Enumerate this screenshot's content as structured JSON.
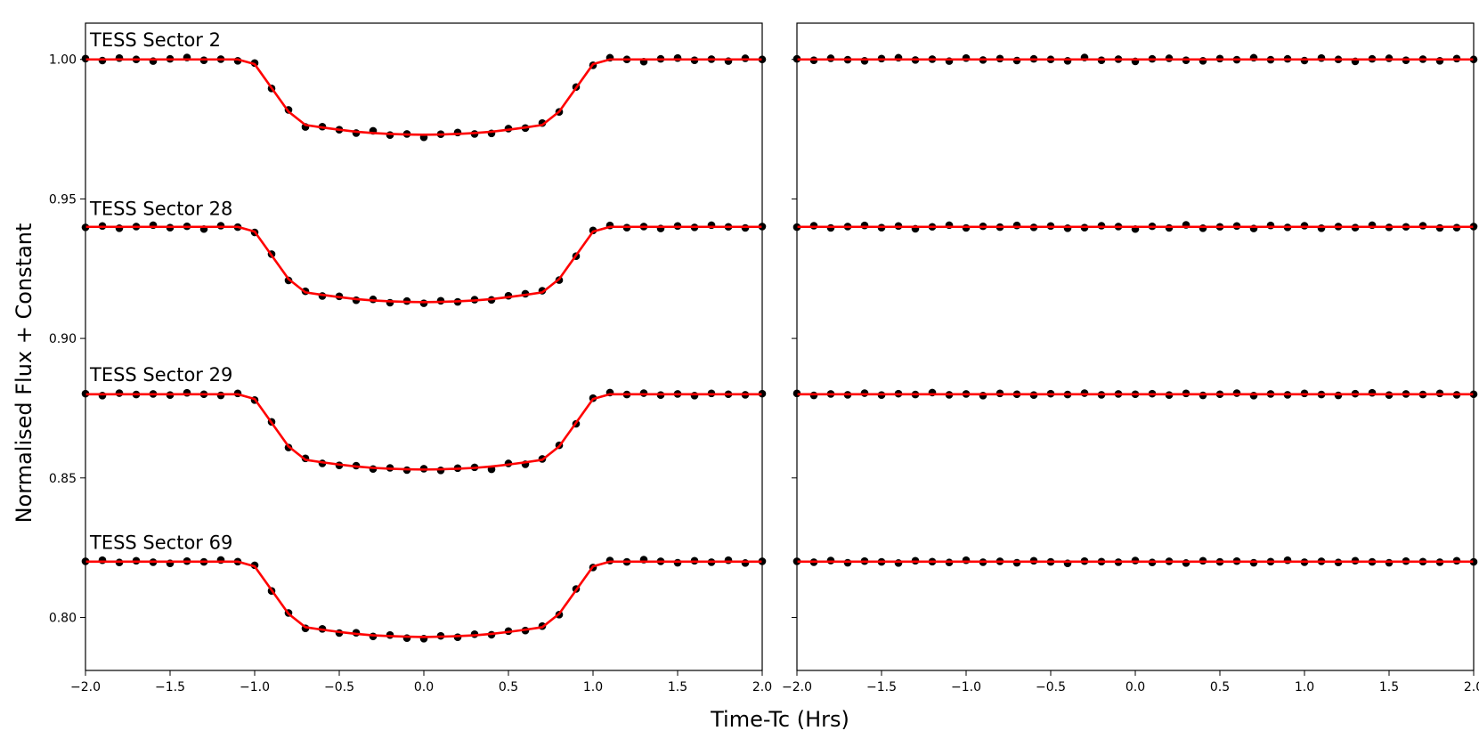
{
  "figure": {
    "xlabel": "Time-Tc (Hrs)",
    "ylabel": "Normalised Flux + Constant"
  },
  "chart_data": [
    {
      "type": "scatter",
      "xlim": [
        -2,
        2
      ],
      "ylim": [
        0.781,
        1.013
      ],
      "xticks": [
        {
          "value": -2,
          "label": "−2.0"
        },
        {
          "value": -1.5,
          "label": "−1.5"
        },
        {
          "value": -1,
          "label": "−1.0"
        },
        {
          "value": -0.5,
          "label": "−0.5"
        },
        {
          "value": 0,
          "label": "0.0"
        },
        0.5,
        {
          "value": 1,
          "label": "1.0"
        },
        1.5,
        {
          "value": 2,
          "label": "2.0"
        }
      ],
      "yticks": [
        {
          "value": 0.8,
          "label": "0.80"
        },
        0.85,
        {
          "value": 0.9,
          "label": "0.90"
        },
        0.95,
        {
          "value": 1,
          "label": "1.00"
        }
      ],
      "ytick_labels": true,
      "x": [
        -2.0,
        -1.9,
        -1.8,
        -1.7,
        -1.6,
        -1.5,
        -1.4,
        -1.3,
        -1.2,
        -1.1,
        -1.0,
        -0.9,
        -0.8,
        -0.7,
        -0.6,
        -0.5,
        -0.4,
        -0.3,
        -0.2,
        -0.1,
        0.0,
        0.1,
        0.2,
        0.3,
        0.4,
        0.5,
        0.6,
        0.7,
        0.8,
        0.9,
        1.0,
        1.1,
        1.2,
        1.3,
        1.4,
        1.5,
        1.6,
        1.7,
        1.8,
        1.9,
        2.0
      ],
      "series": [
        {
          "label": "TESS Sector 2",
          "mode": "markers",
          "color": "#000000",
          "values": [
            1.0003,
            0.9996,
            1.0005,
            1.0,
            0.9994,
            1.0002,
            1.0007,
            0.9997,
            1.0001,
            0.9995,
            0.9987,
            0.9896,
            0.9819,
            0.9758,
            0.9759,
            0.9748,
            0.9736,
            0.9744,
            0.9729,
            0.9733,
            0.9721,
            0.9732,
            0.9738,
            0.9733,
            0.9735,
            0.9752,
            0.9754,
            0.9772,
            0.9812,
            0.9901,
            0.9979,
            1.0006,
            1.0,
            0.9992,
            1.0002,
            1.0005,
            0.9997,
            1.0001,
            0.9994,
            1.0004,
            1.0
          ]
        },
        {
          "label": "TESS Sector 28",
          "mode": "markers",
          "color": "#000000",
          "values": [
            0.9398,
            0.9403,
            0.9395,
            0.9401,
            0.9406,
            0.9397,
            0.9402,
            0.9392,
            0.9404,
            0.9399,
            0.938,
            0.9302,
            0.9208,
            0.9169,
            0.9152,
            0.9151,
            0.9137,
            0.914,
            0.9128,
            0.9134,
            0.9126,
            0.9135,
            0.9131,
            0.9139,
            0.9138,
            0.9153,
            0.916,
            0.9171,
            0.9209,
            0.9295,
            0.9387,
            0.9405,
            0.9397,
            0.9401,
            0.9394,
            0.9403,
            0.9398,
            0.9406,
            0.94,
            0.9396,
            0.9401
          ]
        },
        {
          "label": "TESS Sector 29",
          "mode": "markers",
          "color": "#000000",
          "values": [
            0.8802,
            0.8795,
            0.8804,
            0.8799,
            0.8801,
            0.8797,
            0.8805,
            0.88,
            0.8796,
            0.8803,
            0.8779,
            0.8701,
            0.8609,
            0.857,
            0.8552,
            0.8545,
            0.8544,
            0.8532,
            0.8536,
            0.8528,
            0.8533,
            0.8527,
            0.8535,
            0.8538,
            0.8531,
            0.8552,
            0.8549,
            0.8568,
            0.8617,
            0.8694,
            0.8786,
            0.8806,
            0.8799,
            0.8804,
            0.8797,
            0.8801,
            0.8795,
            0.8803,
            0.88,
            0.8798,
            0.8802
          ]
        },
        {
          "label": "TESS Sector 69",
          "mode": "markers",
          "color": "#000000",
          "values": [
            0.8201,
            0.8205,
            0.8197,
            0.8203,
            0.8198,
            0.8194,
            0.8202,
            0.8199,
            0.8206,
            0.82,
            0.8187,
            0.8095,
            0.8016,
            0.7961,
            0.7959,
            0.7944,
            0.7945,
            0.7932,
            0.7937,
            0.7926,
            0.7924,
            0.7934,
            0.7929,
            0.794,
            0.7938,
            0.7951,
            0.7953,
            0.7969,
            0.801,
            0.8102,
            0.8179,
            0.8204,
            0.8199,
            0.8207,
            0.8201,
            0.8196,
            0.8203,
            0.8198,
            0.8205,
            0.8195,
            0.8201
          ]
        },
        {
          "mode": "line",
          "color": "#ff0000",
          "values": [
            1.0,
            1.0,
            1.0,
            1.0,
            1.0,
            1.0,
            1.0,
            1.0,
            1.0,
            1.0,
            0.9983,
            0.9898,
            0.9813,
            0.9765,
            0.9756,
            0.9748,
            0.9741,
            0.9736,
            0.9733,
            0.9731,
            0.973,
            0.9731,
            0.9733,
            0.9736,
            0.9741,
            0.9748,
            0.9756,
            0.9765,
            0.9813,
            0.9898,
            0.9983,
            1.0,
            1.0,
            1.0,
            1.0,
            1.0,
            1.0,
            1.0,
            1.0,
            1.0,
            1.0
          ]
        },
        {
          "mode": "line",
          "color": "#ff0000",
          "values": [
            0.94,
            0.94,
            0.94,
            0.94,
            0.94,
            0.94,
            0.94,
            0.94,
            0.94,
            0.94,
            0.9383,
            0.9298,
            0.9213,
            0.9165,
            0.9156,
            0.9148,
            0.9141,
            0.9136,
            0.9133,
            0.9131,
            0.913,
            0.9131,
            0.9133,
            0.9136,
            0.9141,
            0.9148,
            0.9156,
            0.9165,
            0.9213,
            0.9298,
            0.9383,
            0.94,
            0.94,
            0.94,
            0.94,
            0.94,
            0.94,
            0.94,
            0.94,
            0.94,
            0.94
          ]
        },
        {
          "mode": "line",
          "color": "#ff0000",
          "values": [
            0.88,
            0.88,
            0.88,
            0.88,
            0.88,
            0.88,
            0.88,
            0.88,
            0.88,
            0.88,
            0.8783,
            0.8698,
            0.8613,
            0.8565,
            0.8556,
            0.8548,
            0.8541,
            0.8536,
            0.8533,
            0.8531,
            0.853,
            0.8531,
            0.8533,
            0.8536,
            0.8541,
            0.8548,
            0.8556,
            0.8565,
            0.8613,
            0.8698,
            0.8783,
            0.88,
            0.88,
            0.88,
            0.88,
            0.88,
            0.88,
            0.88,
            0.88,
            0.88,
            0.88
          ]
        },
        {
          "mode": "line",
          "color": "#ff0000",
          "values": [
            0.82,
            0.82,
            0.82,
            0.82,
            0.82,
            0.82,
            0.82,
            0.82,
            0.82,
            0.82,
            0.8183,
            0.8098,
            0.8013,
            0.7965,
            0.7956,
            0.7948,
            0.7941,
            0.7936,
            0.7933,
            0.7931,
            0.793,
            0.7931,
            0.7933,
            0.7936,
            0.7941,
            0.7948,
            0.7956,
            0.7965,
            0.8013,
            0.8098,
            0.8183,
            0.82,
            0.82,
            0.82,
            0.82,
            0.82,
            0.82,
            0.82,
            0.82,
            0.82,
            0.82
          ]
        }
      ]
    },
    {
      "type": "scatter",
      "xlim": [
        -2,
        2
      ],
      "ylim": [
        0.781,
        1.013
      ],
      "xticks": [
        {
          "value": -2,
          "label": "−2.0"
        },
        {
          "value": -1.5,
          "label": "−1.5"
        },
        {
          "value": -1,
          "label": "−1.0"
        },
        {
          "value": -0.5,
          "label": "−0.5"
        },
        {
          "value": 0,
          "label": "0.0"
        },
        0.5,
        {
          "value": 1,
          "label": "1.0"
        },
        1.5,
        {
          "value": 2,
          "label": "2.0"
        }
      ],
      "yticks": [
        0.8,
        0.85,
        0.9,
        0.95,
        1
      ],
      "ytick_labels": false,
      "x": [
        -2.0,
        -1.9,
        -1.8,
        -1.7,
        -1.6,
        -1.5,
        -1.4,
        -1.3,
        -1.2,
        -1.1,
        -1.0,
        -0.9,
        -0.8,
        -0.7,
        -0.6,
        -0.5,
        -0.4,
        -0.3,
        -0.2,
        -0.1,
        0.0,
        0.1,
        0.2,
        0.3,
        0.4,
        0.5,
        0.6,
        0.7,
        0.8,
        0.9,
        1.0,
        1.1,
        1.2,
        1.3,
        1.4,
        1.5,
        1.6,
        1.7,
        1.8,
        1.9,
        2.0
      ],
      "series": [
        {
          "mode": "markers",
          "color": "#000000",
          "values": [
            1.0002,
            0.9997,
            1.0004,
            0.9999,
            0.9995,
            1.0003,
            1.0006,
            0.9998,
            1.0001,
            0.9994,
            1.0005,
            0.9998,
            1.0003,
            0.9996,
            1.0002,
            1.0,
            0.9995,
            1.0007,
            0.9997,
            1.0001,
            0.9993,
            1.0002,
            1.0004,
            0.9997,
            0.9995,
            1.0003,
            0.9999,
            1.0006,
            0.9999,
            1.0002,
            0.9996,
            1.0005,
            1.0,
            0.9993,
            1.0002,
            1.0004,
            0.9997,
            1.0001,
            0.9995,
            1.0003,
            1.0
          ]
        },
        {
          "mode": "markers",
          "color": "#000000",
          "values": [
            0.9399,
            0.9404,
            0.9396,
            0.9401,
            0.9405,
            0.9397,
            0.9403,
            0.9393,
            0.94,
            0.9406,
            0.9396,
            0.9402,
            0.9399,
            0.9405,
            0.9398,
            0.9403,
            0.9395,
            0.9397,
            0.9404,
            0.9401,
            0.9392,
            0.9402,
            0.9396,
            0.9407,
            0.9395,
            0.94,
            0.9403,
            0.9394,
            0.9405,
            0.9398,
            0.9404,
            0.9395,
            0.9401,
            0.9397,
            0.9406,
            0.9398,
            0.94,
            0.9404,
            0.9396,
            0.9397,
            0.9401
          ]
        },
        {
          "mode": "markers",
          "color": "#000000",
          "values": [
            0.8803,
            0.8796,
            0.8801,
            0.8798,
            0.8804,
            0.8797,
            0.8802,
            0.8799,
            0.8806,
            0.8798,
            0.8801,
            0.8795,
            0.8803,
            0.88,
            0.8797,
            0.8802,
            0.8799,
            0.8804,
            0.8798,
            0.8801,
            0.88,
            0.8802,
            0.8797,
            0.8803,
            0.8796,
            0.88,
            0.8804,
            0.8795,
            0.8801,
            0.8798,
            0.8803,
            0.8799,
            0.8796,
            0.8802,
            0.8805,
            0.8797,
            0.8801,
            0.8799,
            0.8803,
            0.8798,
            0.88
          ]
        },
        {
          "mode": "markers",
          "color": "#000000",
          "values": [
            0.8201,
            0.8198,
            0.8204,
            0.8196,
            0.8202,
            0.8199,
            0.8195,
            0.8203,
            0.82,
            0.8197,
            0.8205,
            0.8198,
            0.8201,
            0.8196,
            0.8203,
            0.8199,
            0.8194,
            0.8202,
            0.82,
            0.8198,
            0.8204,
            0.8197,
            0.8201,
            0.8195,
            0.8203,
            0.8199,
            0.8202,
            0.8196,
            0.82,
            0.8205,
            0.8198,
            0.8201,
            0.8197,
            0.8203,
            0.8199,
            0.8196,
            0.8202,
            0.82,
            0.8198,
            0.8203,
            0.8199
          ]
        },
        {
          "mode": "line",
          "color": "#ff0000",
          "x": [
            -2.0,
            2.0
          ],
          "values": [
            1.0,
            1.0
          ]
        },
        {
          "mode": "line",
          "color": "#ff0000",
          "x": [
            -2.0,
            2.0
          ],
          "values": [
            0.94,
            0.94
          ]
        },
        {
          "mode": "line",
          "color": "#ff0000",
          "x": [
            -2.0,
            2.0
          ],
          "values": [
            0.88,
            0.88
          ]
        },
        {
          "mode": "line",
          "color": "#ff0000",
          "x": [
            -2.0,
            2.0
          ],
          "values": [
            0.82,
            0.82
          ]
        }
      ]
    }
  ]
}
